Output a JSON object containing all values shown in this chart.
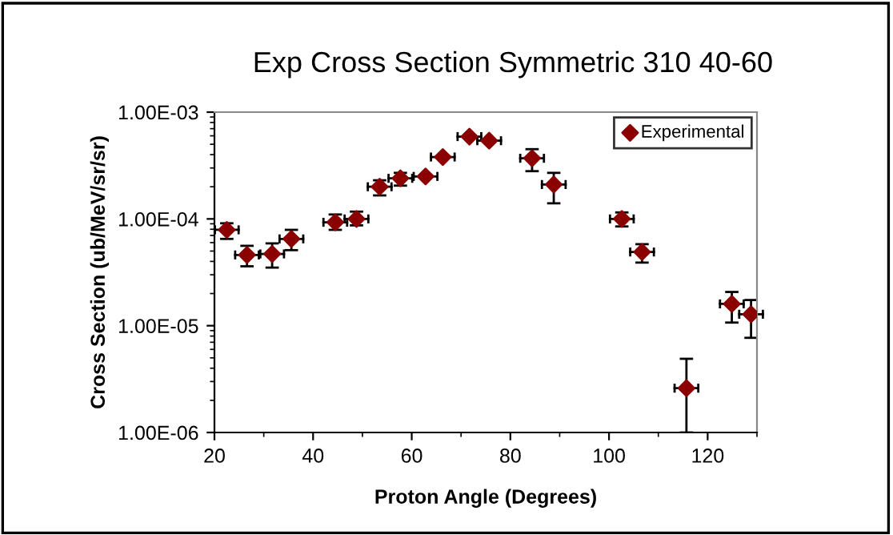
{
  "chart_data": {
    "type": "scatter",
    "title": "Exp Cross Section Symmetric 310 40-60",
    "xlabel": "Proton Angle (Degrees)",
    "ylabel": "Cross Section (ub/MeV/sr/sr)",
    "x": [
      22.5,
      26.6,
      31.7,
      35.6,
      44.5,
      48.8,
      53.5,
      57.7,
      62.8,
      66.3,
      71.7,
      75.7,
      84.4,
      88.8,
      102.6,
      106.7,
      115.7,
      124.9,
      128.8
    ],
    "series": [
      {
        "name": "Experimental",
        "color": "#8b0000",
        "values": [
          7.9e-05,
          4.6e-05,
          4.7e-05,
          6.5e-05,
          9.3e-05,
          0.0001,
          0.0002,
          0.00024,
          0.00025,
          0.00038,
          0.00059,
          0.00054,
          0.00037,
          0.00021,
          0.0001,
          4.9e-05,
          2.6e-06,
          1.6e-05,
          1.28e-05
        ],
        "errors": [
          [
            6.5e-05,
            9.1e-05
          ],
          [
            3.6e-05,
            5.6e-05
          ],
          [
            3.5e-05,
            5.9e-05
          ],
          [
            5.1e-05,
            7.9e-05
          ],
          [
            7.9e-05,
            0.00011
          ],
          [
            8.7e-05,
            0.000117
          ],
          [
            0.000166,
            0.00023
          ],
          [
            0.000205,
            0.00027
          ],
          null,
          null,
          null,
          null,
          [
            0.00028,
            0.00045
          ],
          [
            0.00014,
            0.00027
          ],
          [
            8.5e-05,
            0.000115
          ],
          [
            3.9e-05,
            5.8e-05
          ],
          [
            1e-06,
            4.9e-06
          ],
          [
            1.07e-05,
            2.07e-05
          ],
          [
            7.7e-06,
            1.74e-05
          ]
        ],
        "xerrors": [
          [
            20.1,
            24.9
          ],
          [
            24.2,
            29.0
          ],
          [
            29.3,
            34.1
          ],
          [
            33.2,
            38.0
          ],
          [
            42.1,
            46.9
          ],
          [
            46.4,
            51.2
          ],
          [
            51.1,
            55.9
          ],
          [
            55.3,
            60.1
          ],
          [
            60.4,
            65.2
          ],
          [
            63.9,
            68.7
          ],
          [
            69.3,
            74.1
          ],
          [
            73.3,
            78.1
          ],
          [
            82.0,
            86.8
          ],
          [
            86.4,
            91.2
          ],
          [
            100.2,
            105.0
          ],
          [
            104.3,
            109.1
          ],
          [
            113.3,
            118.1
          ],
          [
            122.5,
            127.3
          ],
          [
            126.4,
            131.2
          ]
        ]
      }
    ],
    "log": "y",
    "xlim": [
      20,
      130
    ],
    "xticks": [
      20,
      40,
      60,
      80,
      100,
      120
    ],
    "ylim": [
      1e-06,
      0.001
    ],
    "yticks": [
      {
        "value": 1e-06,
        "label": "1.00E-06"
      },
      {
        "value": 1e-05,
        "label": "1.00E-05"
      },
      {
        "value": 0.0001,
        "label": "1.00E-04"
      },
      {
        "value": 0.001,
        "label": "1.00E-03"
      }
    ],
    "marker": "diamond",
    "legend": "top right",
    "grid": false
  }
}
